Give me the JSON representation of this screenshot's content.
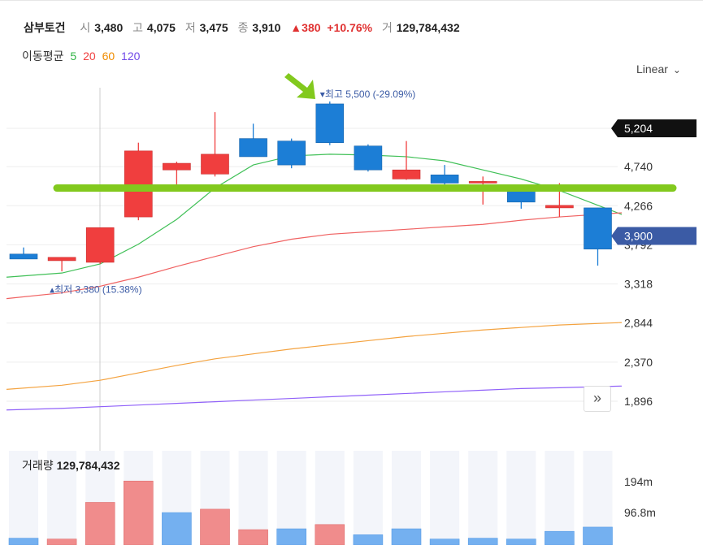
{
  "header": {
    "name": "삼부토건",
    "open_label": "시",
    "open": "3,480",
    "high_label": "고",
    "high": "4,075",
    "low_label": "저",
    "low": "3,475",
    "close_label": "종",
    "close": "3,910",
    "change": "▲380",
    "change_pct": "+10.76%",
    "volume_label": "거",
    "volume": "129,784,432"
  },
  "ma_legend": {
    "label": "이동평균",
    "items": [
      {
        "period": "5",
        "color": "#2fb344"
      },
      {
        "period": "20",
        "color": "#f03e3e"
      },
      {
        "period": "60",
        "color": "#f08c00"
      },
      {
        "period": "120",
        "color": "#7048e8"
      }
    ]
  },
  "scale_toggle": "Linear",
  "annotations": {
    "high_text": "최고",
    "high_value": "5,500 (-29.09%)",
    "low_text": "최저",
    "low_value": "3,380 (15.38%)"
  },
  "volume_panel": {
    "label": "거래량",
    "value": "129,784,432",
    "ticks": [
      "194m",
      "96.8m"
    ]
  },
  "colors": {
    "up": "#f03e3e",
    "down": "#1c7ed6",
    "highlight_line": "#82c91e",
    "arrow": "#82c91e",
    "price_tag_dark": "#111111",
    "price_tag_blue": "#3b5ba5"
  },
  "chart_data": {
    "type": "candlestick",
    "y_ticks": [
      "5,204",
      "4,740",
      "4,266",
      "3,792",
      "3,318",
      "2,844",
      "2,370",
      "1,896"
    ],
    "y_tick_values": [
      5204,
      4740,
      4266,
      3792,
      3318,
      2844,
      2370,
      1896
    ],
    "ylim": [
      1780,
      5700
    ],
    "price_tags": [
      {
        "label": "5,204",
        "value": 5204,
        "style": "dark"
      },
      {
        "label": "3,900",
        "value": 3900,
        "style": "blue"
      }
    ],
    "highlight_level": 4480,
    "candles": [
      {
        "o": 3680,
        "h": 3760,
        "l": 3630,
        "c": 3620
      },
      {
        "o": 3600,
        "h": 3640,
        "l": 3470,
        "c": 3640
      },
      {
        "o": 3580,
        "h": 4000,
        "l": 3560,
        "c": 4000
      },
      {
        "o": 4130,
        "h": 5030,
        "l": 4090,
        "c": 4930
      },
      {
        "o": 4700,
        "h": 4800,
        "l": 4520,
        "c": 4780
      },
      {
        "o": 4650,
        "h": 5400,
        "l": 4620,
        "c": 4890
      },
      {
        "o": 5080,
        "h": 5260,
        "l": 4860,
        "c": 4860
      },
      {
        "o": 5050,
        "h": 5080,
        "l": 4720,
        "c": 4760
      },
      {
        "o": 5500,
        "h": 5530,
        "l": 5000,
        "c": 5030
      },
      {
        "o": 4990,
        "h": 5010,
        "l": 4680,
        "c": 4700
      },
      {
        "o": 4590,
        "h": 5050,
        "l": 4580,
        "c": 4700
      },
      {
        "o": 4640,
        "h": 4760,
        "l": 4490,
        "c": 4540
      },
      {
        "o": 4560,
        "h": 4620,
        "l": 4280,
        "c": 4560
      },
      {
        "o": 4490,
        "h": 4490,
        "l": 4230,
        "c": 4310
      },
      {
        "o": 4240,
        "h": 4540,
        "l": 4130,
        "c": 4270
      },
      {
        "o": 4240,
        "h": 4240,
        "l": 3540,
        "c": 3740
      }
    ],
    "ma": {
      "5": [
        3400,
        3450,
        3560,
        3800,
        4100,
        4480,
        4760,
        4870,
        4890,
        4880,
        4860,
        4810,
        4700,
        4590,
        4450,
        4160
      ],
      "20": [
        3140,
        3210,
        3290,
        3400,
        3530,
        3650,
        3770,
        3860,
        3920,
        3950,
        3980,
        4010,
        4040,
        4090,
        4130,
        4180
      ],
      "60": [
        2040,
        2090,
        2150,
        2240,
        2330,
        2410,
        2470,
        2530,
        2580,
        2630,
        2680,
        2720,
        2760,
        2790,
        2820,
        2850
      ],
      "120": [
        1790,
        1810,
        1830,
        1850,
        1870,
        1890,
        1910,
        1930,
        1950,
        1970,
        1990,
        2010,
        2030,
        2050,
        2060,
        2080
      ]
    },
    "volume": {
      "values": [
        8,
        7,
        50,
        75,
        38,
        42,
        18,
        19,
        24,
        12,
        19,
        7,
        8,
        7,
        16,
        21
      ],
      "up": [
        false,
        true,
        true,
        true,
        false,
        true,
        true,
        false,
        true,
        false,
        false,
        false,
        false,
        false,
        false,
        false
      ],
      "ylim": [
        0,
        200
      ]
    }
  }
}
